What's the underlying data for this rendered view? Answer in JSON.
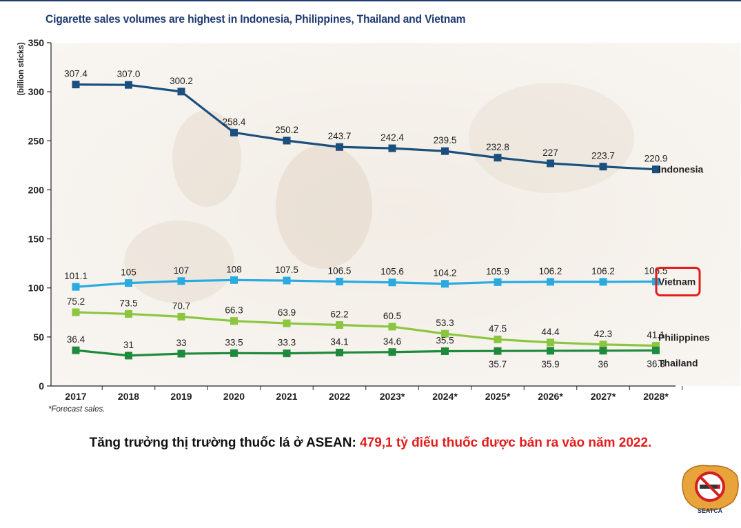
{
  "chart_data": {
    "type": "line",
    "title": "Cigarette sales volumes are highest in Indonesia, Philippines, Thailand and Vietnam",
    "ylabel": "(billion sticks)",
    "xlabel": "",
    "ylim": [
      0,
      350
    ],
    "yticks": [
      "0",
      "50",
      "100",
      "150",
      "200",
      "250",
      "300",
      "350"
    ],
    "categories": [
      "2017",
      "2018",
      "2019",
      "2020",
      "2021",
      "2022",
      "2023*",
      "2024*",
      "2025*",
      "2026*",
      "2027*",
      "2028*"
    ],
    "series": [
      {
        "name": "Indonesia",
        "color": "#1b4f7e",
        "values": [
          307.4,
          307.0,
          300.2,
          258.4,
          250.2,
          243.7,
          242.4,
          239.5,
          232.8,
          227,
          223.7,
          220.9
        ],
        "labels": [
          "307.4",
          "307.0",
          "300.2",
          "258.4",
          "250.2",
          "243.7",
          "242.4",
          "239.5",
          "232.8",
          "227",
          "223.7",
          "220.9"
        ]
      },
      {
        "name": "Vietnam",
        "color": "#29abe2",
        "values": [
          101.1,
          105,
          107,
          108,
          107.5,
          106.5,
          105.6,
          104.2,
          105.9,
          106.2,
          106.2,
          106.5
        ],
        "labels": [
          "101.1",
          "105",
          "107",
          "108",
          "107.5",
          "106.5",
          "105.6",
          "104.2",
          "105.9",
          "106.2",
          "106.2",
          "106.5"
        ]
      },
      {
        "name": "Philippines",
        "color": "#8cc63f",
        "values": [
          75.2,
          73.5,
          70.7,
          66.3,
          63.9,
          62.2,
          60.5,
          53.3,
          47.5,
          44.4,
          42.3,
          41.1
        ],
        "labels": [
          "75.2",
          "73.5",
          "70.7",
          "66.3",
          "63.9",
          "62.2",
          "60.5",
          "53.3",
          "47.5",
          "44.4",
          "42.3",
          "41.1"
        ]
      },
      {
        "name": "Thailand",
        "color": "#1e8a3c",
        "values": [
          36.4,
          31,
          33,
          33.5,
          33.3,
          34.1,
          34.6,
          35.5,
          35.7,
          35.9,
          36,
          36.3
        ],
        "labels": [
          "36.4",
          "31",
          "33",
          "33.5",
          "33.3",
          "34.1",
          "34.6",
          "35.5",
          "35.7",
          "35.9",
          "36",
          "36.3"
        ]
      }
    ],
    "highlight": "Vietnam",
    "grid": false,
    "legend": "line-end labels"
  },
  "footnote": "*Forecast sales.",
  "caption": {
    "lead": "Tăng trưởng thị trường thuốc lá ở ASEAN: ",
    "highlight": "479,1 tỷ điếu thuốc được bán ra vào năm 2022."
  },
  "logo": {
    "text": "SEATCA",
    "icon": "no-smoking-hand-icon"
  },
  "colors": {
    "title": "#1f3b70",
    "highlight_box": "#e31c1c",
    "caption_highlight": "#e31c1c"
  }
}
